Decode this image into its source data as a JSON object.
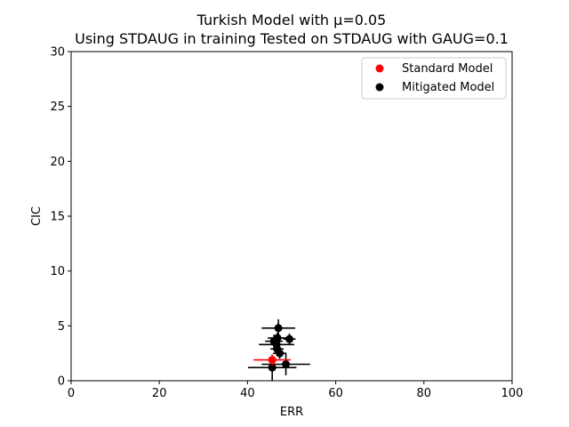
{
  "chart_data": {
    "type": "scatter",
    "title": "Turkish Model with μ=0.05",
    "subtitle": "Using STDAUG in training Tested on STDAUG with GAUG=0.1",
    "xlabel": "ERR",
    "ylabel": "CIC",
    "xlim": [
      0,
      100
    ],
    "ylim": [
      0,
      30
    ],
    "x_ticks": [
      0,
      20,
      40,
      60,
      80,
      100
    ],
    "y_ticks": [
      0,
      5,
      10,
      15,
      20,
      25,
      30
    ],
    "grid": false,
    "legend_position": "top-right",
    "series": [
      {
        "name": "Standard Model",
        "color": "#ff0000",
        "points": [
          {
            "x": 45.6,
            "y": 1.9,
            "xerr": 4.2,
            "yerr": 0.5
          }
        ]
      },
      {
        "name": "Mitigated Model",
        "color": "#000000",
        "points": [
          {
            "x": 47.0,
            "y": 4.8,
            "xerr": 3.8,
            "yerr": 0.8
          },
          {
            "x": 49.5,
            "y": 3.8,
            "xerr": 1.4,
            "yerr": 0.5
          },
          {
            "x": 46.8,
            "y": 3.9,
            "xerr": 2.2,
            "yerr": 0.5
          },
          {
            "x": 46.0,
            "y": 3.6,
            "xerr": 2.0,
            "yerr": 0.6
          },
          {
            "x": 46.6,
            "y": 3.3,
            "xerr": 4.0,
            "yerr": 0.6
          },
          {
            "x": 46.7,
            "y": 2.9,
            "xerr": 1.5,
            "yerr": 0.6
          },
          {
            "x": 47.3,
            "y": 2.5,
            "xerr": 1.5,
            "yerr": 0.5
          },
          {
            "x": 48.7,
            "y": 1.5,
            "xerr": 5.5,
            "yerr": 1.0
          },
          {
            "x": 45.6,
            "y": 1.2,
            "xerr": 5.5,
            "yerr": 1.2
          }
        ]
      }
    ]
  }
}
